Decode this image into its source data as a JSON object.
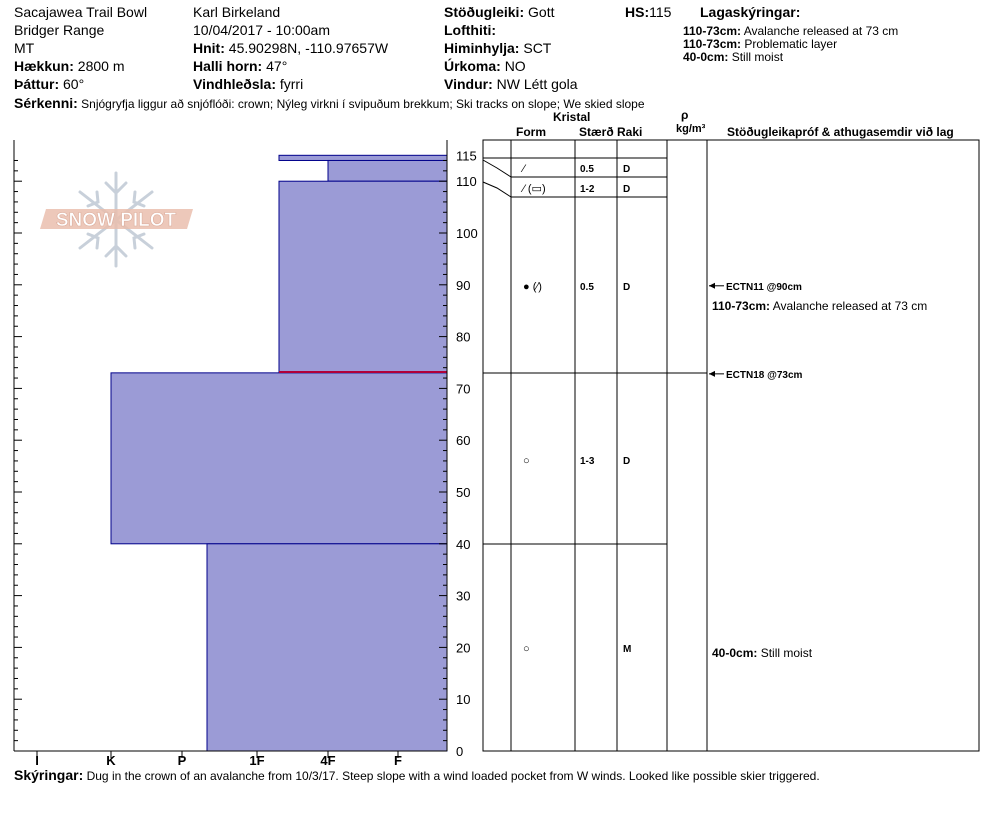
{
  "header": {
    "location": "Sacajawea Trail Bowl",
    "range": "Bridger Range",
    "state": "MT",
    "elevation_label": "Hækkun:",
    "elevation_value": "2800 m",
    "aspect_label": "Þáttur:",
    "aspect_value": "60°",
    "observer": "Karl Birkeland",
    "datetime": "10/04/2017 - 10:00am",
    "coords_label": "Hnit:",
    "coords_value": "45.90298N, -110.97657W",
    "slope_label": "Halli horn:",
    "slope_value": "47°",
    "wind_loading_label": "Vindhleðsla:",
    "wind_loading_value": "fyrri",
    "stability_label": "Stöðugleiki:",
    "stability_value": "Gott",
    "air_temp_label": "Lofthiti:",
    "air_temp_value": "",
    "sky_label": "Himinhylja:",
    "sky_value": "SCT",
    "precip_label": "Úrkoma:",
    "precip_value": "NO",
    "wind_label": "Vindur:",
    "wind_value": "NW Létt gola",
    "hs_label": "HS:",
    "hs_value": "115",
    "legend_title": "Lagaskýringar:",
    "legend_items": [
      {
        "range": "110-73cm:",
        "text": "Avalanche released at 73 cm"
      },
      {
        "range": "110-73cm:",
        "text": "Problematic layer"
      },
      {
        "range": "40-0cm:",
        "text": "Still moist"
      }
    ],
    "features_label": "Sérkenni:",
    "features_value": "Snjógryfja liggur að snjóflóði: crown; Nýleg virkni í svipuðum brekkum; Ski tracks on slope; We skied slope"
  },
  "watermark": {
    "text": "SNOW PILOT"
  },
  "columns": {
    "crystal": "Kristal",
    "form": "Form",
    "size": "Stærð",
    "moisture": "Raki",
    "density_symbol": "ρ",
    "density_unit": "kg/m³",
    "tests": "Stöðugleikapróf & athugasemdir við lag"
  },
  "footer": {
    "label": "Skýringar:",
    "text": "Dug in the crown of an avalanche from 10/3/17.  Steep slope with a wind loaded pocket from W winds.  Looked like possible skier triggered."
  },
  "chart_data": {
    "type": "snow-profile",
    "y_axis": {
      "min": 0,
      "max": 115,
      "ticks": [
        0,
        10,
        20,
        30,
        40,
        50,
        60,
        70,
        80,
        90,
        100,
        110,
        115
      ]
    },
    "hardness_scale": [
      "I",
      "K",
      "P",
      "1F",
      "4F",
      "F"
    ],
    "hardness_layers": [
      {
        "top": 115,
        "bottom": 114,
        "hardness": "1F-"
      },
      {
        "top": 114,
        "bottom": 110,
        "hardness": "1F+"
      },
      {
        "top": 110,
        "bottom": 73,
        "hardness": "1F-"
      },
      {
        "top": 73,
        "bottom": 40,
        "hardness": "K"
      },
      {
        "top": 40,
        "bottom": 0,
        "hardness": "P+"
      }
    ],
    "problem_layer_depth": 73,
    "layers": [
      {
        "top": 115,
        "bottom": 110,
        "form": "⁄",
        "size": "0.5",
        "moisture": "D"
      },
      {
        "top": 110,
        "bottom": 106,
        "form": "⁄ (▭)",
        "size": "1-2",
        "moisture": "D"
      },
      {
        "top": 106,
        "bottom": 73,
        "form": "● (⁄)",
        "size": "0.5",
        "moisture": "D"
      },
      {
        "top": 73,
        "bottom": 40,
        "form": "○",
        "size": "1-3",
        "moisture": "D"
      },
      {
        "top": 40,
        "bottom": 0,
        "form": "○",
        "size": "",
        "moisture": "M"
      }
    ],
    "tests": [
      {
        "depth": 90,
        "result": "ECTN11 @90cm"
      },
      {
        "depth": 73,
        "result": "ECTN18 @73cm"
      }
    ],
    "comments": [
      {
        "range": "110-73cm:",
        "text": "Avalanche released at 73 cm"
      },
      {
        "range": "40-0cm:",
        "text": "Still moist"
      }
    ],
    "colors": {
      "fill": "#9b9bd6",
      "stroke": "#00008b",
      "problem_layer": "#b0003a",
      "watermark": "#d9a593"
    }
  }
}
